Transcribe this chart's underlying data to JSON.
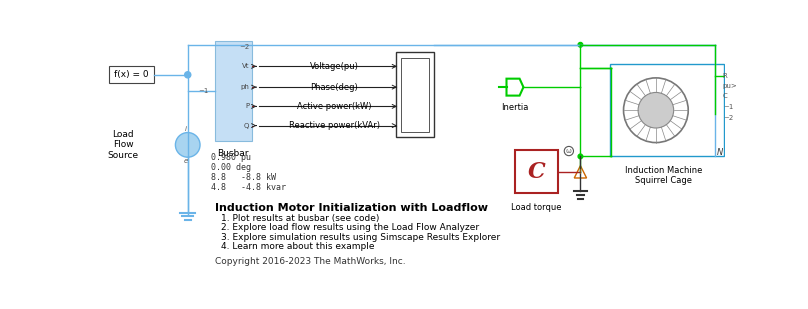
{
  "background_color": "#ffffff",
  "title": "Induction Motor Initialization with Loadflow",
  "bullet_points": [
    "1. Plot results at busbar (see code)",
    "2. Explore load flow results using the Load Flow Analyzer",
    "3. Explore simulation results using Simscape Results Explorer",
    "4. Learn more about this example"
  ],
  "copyright": "Copyright 2016-2023 The MathWorks, Inc.",
  "busbar_label": "Busbar",
  "busbar_values": [
    "0.980 pu",
    "0.00 deg",
    "8.8   -8.8 kW",
    "4.8   -4.8 kvar"
  ],
  "load_flow_source": "Load\nFlow\nSource",
  "scope_labels": [
    "Voltage(pu)",
    "Phase(deg)",
    "Active power(kW)",
    "Reactive power(kVAr)"
  ],
  "inertia_label": "Inertia",
  "machine_label": "Induction Machine\nSquirrel Cage",
  "load_torque_label": "Load torque",
  "fx0_label": "f(x) = 0",
  "busbar_color": "#c5dff5",
  "wire_color": "#6ab4e8",
  "green_wire": "#00cc00",
  "text_color": "#000000",
  "C_color": "#aa2222",
  "dark_red_wire": "#882222",
  "node_color": "#6ab4e8",
  "inertia_color": "#00cc00"
}
